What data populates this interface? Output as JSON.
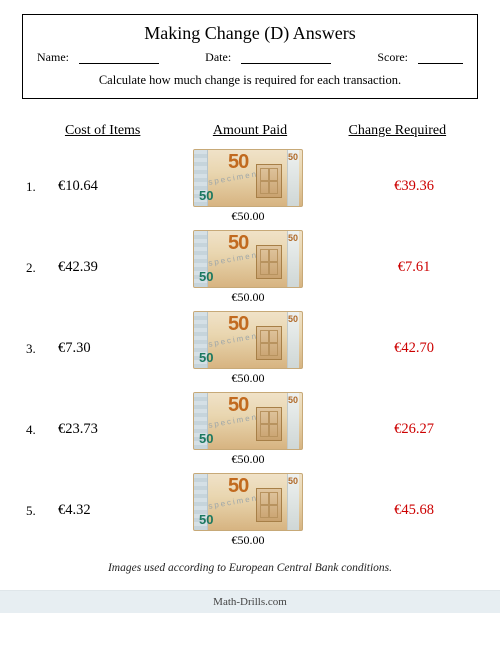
{
  "title": "Making Change (D) Answers",
  "meta": {
    "name_label": "Name:",
    "date_label": "Date:",
    "score_label": "Score:"
  },
  "instruction": "Calculate how much change is required for each transaction.",
  "columns": {
    "cost": "Cost of Items",
    "paid": "Amount Paid",
    "change": "Change Required"
  },
  "banknote": {
    "denomination": "50",
    "corner_small": "50",
    "right_small": "50",
    "specimen": "specimen",
    "amount_paid_label": "€50.00"
  },
  "change_color": "#cc0000",
  "rows": [
    {
      "n": "1.",
      "cost": "€10.64",
      "change": "€39.36"
    },
    {
      "n": "2.",
      "cost": "€42.39",
      "change": "€7.61"
    },
    {
      "n": "3.",
      "cost": "€7.30",
      "change": "€42.70"
    },
    {
      "n": "4.",
      "cost": "€23.73",
      "change": "€26.27"
    },
    {
      "n": "5.",
      "cost": "€4.32",
      "change": "€45.68"
    }
  ],
  "footer": "Images used according to European Central Bank conditions.",
  "brand": "Math-Drills.com"
}
